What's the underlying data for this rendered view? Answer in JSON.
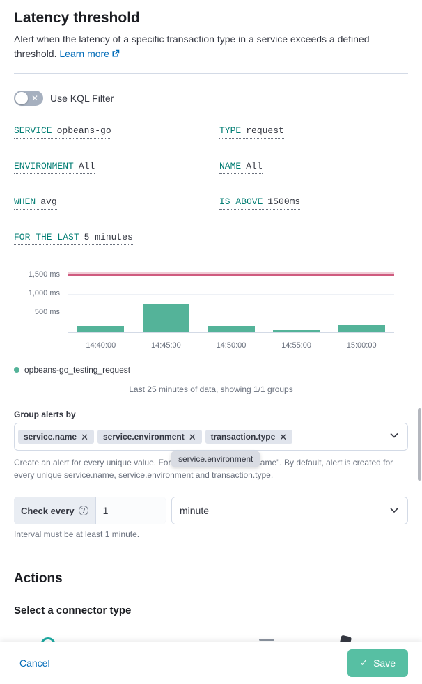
{
  "panel": {
    "title": "Latency threshold",
    "description": "Alert when the latency of a specific transaction type in a service exceeds a defined threshold.",
    "learn_more_label": "Learn more"
  },
  "kql_switch": {
    "label": "Use KQL Filter",
    "state": "off"
  },
  "expressions": [
    {
      "label": "SERVICE",
      "value": "opbeans-go"
    },
    {
      "label": "TYPE",
      "value": "request"
    },
    {
      "label": "ENVIRONMENT",
      "value": "All"
    },
    {
      "label": "NAME",
      "value": "All"
    },
    {
      "label": "WHEN",
      "value": "avg"
    },
    {
      "label": "IS ABOVE",
      "value": "1500ms"
    },
    {
      "label": "FOR THE LAST",
      "value": "5 minutes"
    }
  ],
  "chart_data": {
    "type": "bar",
    "categories": [
      "14:40:00",
      "14:45:00",
      "14:50:00",
      "14:55:00",
      "15:00:00"
    ],
    "values": [
      170,
      760,
      170,
      60,
      200
    ],
    "yticks": [
      {
        "value": 500,
        "label": "500 ms"
      },
      {
        "value": 1000,
        "label": "1,000 ms"
      },
      {
        "value": 1500,
        "label": "1,500 ms"
      }
    ],
    "ylim": [
      0,
      1800
    ],
    "threshold": 1500,
    "legend": [
      "opbeans-go_testing_request"
    ],
    "caption": "Last 25 minutes of data, showing 1/1 groups",
    "title": "",
    "xlabel": "",
    "ylabel": "",
    "bar_color": "#54b399",
    "threshold_line_color": "#cf5b7f",
    "threshold_band_color": "rgba(213,108,138,0.35)"
  },
  "group_by": {
    "label": "Group alerts by",
    "tags": [
      "service.name",
      "service.environment",
      "transaction.type"
    ],
    "help": "Create an alert for every unique value. For example: \"transaction.name\". By default, alert is created for every unique service.name, service.environment and transaction.type.",
    "tooltip": "service.environment"
  },
  "interval": {
    "prepend": "Check every",
    "value": "1",
    "unit": "minute",
    "help": "Interval must be at least 1 minute."
  },
  "actions": {
    "title": "Actions",
    "subtitle": "Select a connector type"
  },
  "footer": {
    "cancel_label": "Cancel",
    "save_label": "Save"
  },
  "colors": {
    "expression_teal": "#017d73",
    "bar_green": "#54b399",
    "threshold_pink": "#cf5b7f",
    "link_blue": "#006bb8",
    "save_button_green": "#57bfa3"
  }
}
